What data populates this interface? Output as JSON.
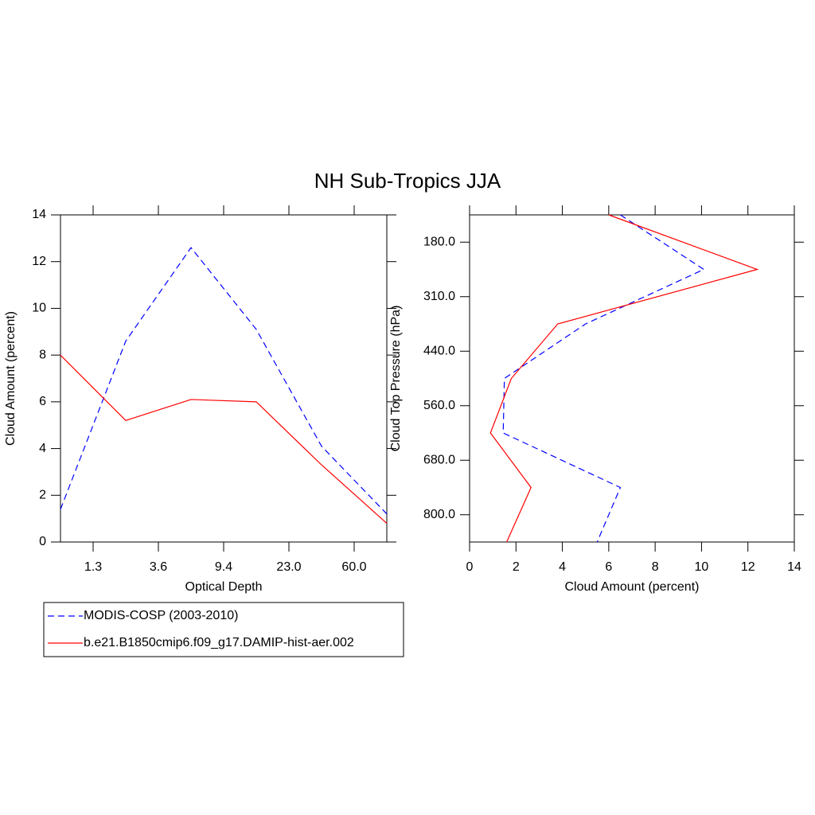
{
  "title": "NH Sub-Tropics JJA",
  "chart_data": [
    {
      "type": "line",
      "orientation": "vertical",
      "x_label": "Optical Depth",
      "y_label": "Cloud Amount (percent)",
      "categories": [
        null,
        null,
        null,
        null,
        null,
        null
      ],
      "xtick_labels": [
        "1.3",
        "3.6",
        "9.4",
        "23.0",
        "60.0"
      ],
      "ylim": [
        0,
        14
      ],
      "yticks": [
        0,
        2,
        4,
        6,
        8,
        10,
        12,
        14
      ],
      "series": [
        {
          "name": "MODIS-COSP (2003-2010)",
          "color": "#0000ff",
          "line_style": "dashed",
          "values": [
            1.4,
            8.6,
            12.6,
            9.1,
            4.1,
            1.2
          ]
        },
        {
          "name": "b.e21.B1850cmip6.f09_g17.DAMIP-hist-aer.002",
          "color": "#ff0000",
          "line_style": "solid",
          "values": [
            8.0,
            5.2,
            6.1,
            6.0,
            3.3,
            0.8
          ]
        }
      ]
    },
    {
      "type": "line",
      "orientation": "horizontal",
      "x_label": "Cloud Amount (percent)",
      "y_label": "Cloud Top Pressure (hPa)",
      "categories": [
        null,
        null,
        null,
        null,
        null,
        null,
        null
      ],
      "ytick_labels": [
        "180.0",
        "310.0",
        "440.0",
        "560.0",
        "680.0",
        "800.0"
      ],
      "xlim": [
        0,
        14
      ],
      "xticks": [
        0,
        2,
        4,
        6,
        8,
        10,
        12,
        14
      ],
      "series": [
        {
          "color": "#0000ff",
          "line_style": "dashed",
          "values": [
            6.5,
            10.1,
            5.0,
            1.5,
            1.45,
            6.5,
            5.5
          ]
        },
        {
          "color": "#ff0000",
          "line_style": "solid",
          "values": [
            6.0,
            12.4,
            3.8,
            1.8,
            0.9,
            2.65,
            1.6
          ]
        }
      ]
    }
  ]
}
